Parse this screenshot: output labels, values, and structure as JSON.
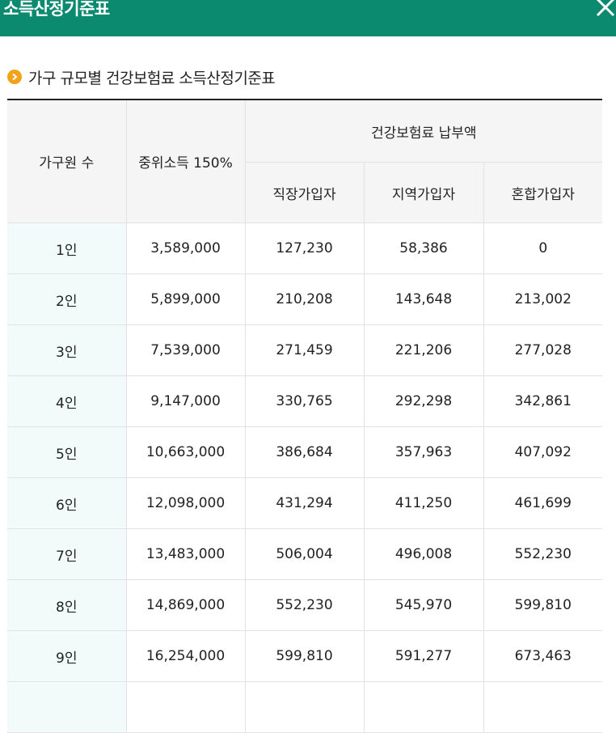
{
  "window": {
    "title": "소득산정기준표",
    "close_icon": "close-icon"
  },
  "section": {
    "bullet_icon": "chevron-right-circle-icon",
    "heading": "가구 규모별 건강보험료 소득산정기준표"
  },
  "colors": {
    "titlebar_bg": "#0b8a6f",
    "bullet": "#f2a31a",
    "first_col_bg": "#f3fbfa",
    "header_bg": "#f5f5f5"
  },
  "table": {
    "headers": {
      "household": "가구원 수",
      "median_income": "중위소득 150%",
      "premium_group": "건강보험료 납부액",
      "employee": "직장가입자",
      "regional": "지역가입자",
      "mixed": "혼합가입자"
    },
    "rows": [
      {
        "household": "1인",
        "median": "3,589,000",
        "employee": "127,230",
        "regional": "58,386",
        "mixed": "0"
      },
      {
        "household": "2인",
        "median": "5,899,000",
        "employee": "210,208",
        "regional": "143,648",
        "mixed": "213,002"
      },
      {
        "household": "3인",
        "median": "7,539,000",
        "employee": "271,459",
        "regional": "221,206",
        "mixed": "277,028"
      },
      {
        "household": "4인",
        "median": "9,147,000",
        "employee": "330,765",
        "regional": "292,298",
        "mixed": "342,861"
      },
      {
        "household": "5인",
        "median": "10,663,000",
        "employee": "386,684",
        "regional": "357,963",
        "mixed": "407,092"
      },
      {
        "household": "6인",
        "median": "12,098,000",
        "employee": "431,294",
        "regional": "411,250",
        "mixed": "461,699"
      },
      {
        "household": "7인",
        "median": "13,483,000",
        "employee": "506,004",
        "regional": "496,008",
        "mixed": "552,230"
      },
      {
        "household": "8인",
        "median": "14,869,000",
        "employee": "552,230",
        "regional": "545,970",
        "mixed": "599,810"
      },
      {
        "household": "9인",
        "median": "16,254,000",
        "employee": "599,810",
        "regional": "591,277",
        "mixed": "673,463"
      },
      {
        "household": "",
        "median": "",
        "employee": "",
        "regional": "",
        "mixed": ""
      }
    ]
  }
}
